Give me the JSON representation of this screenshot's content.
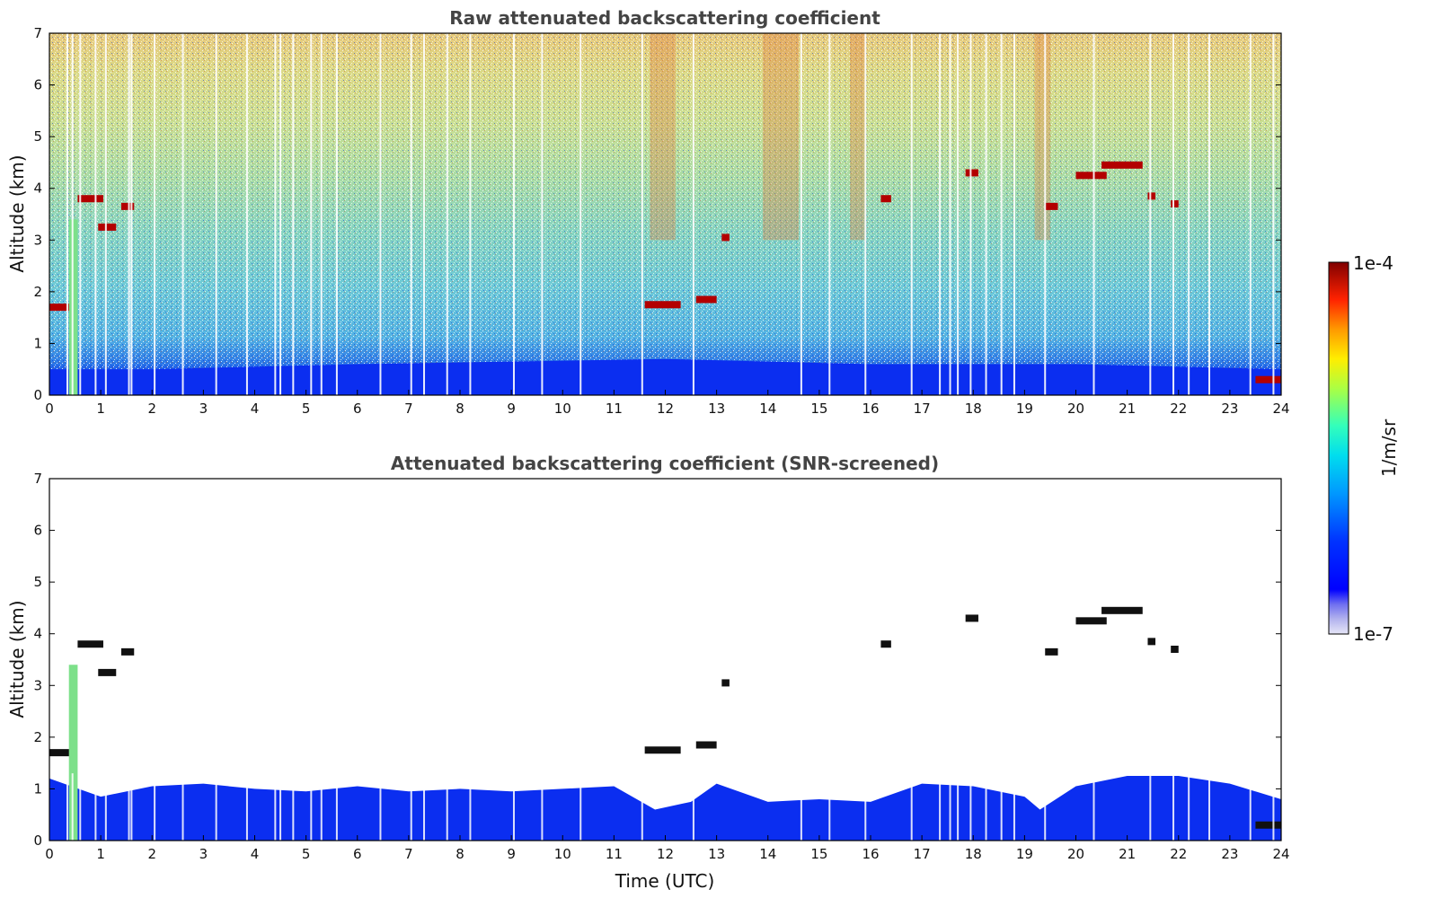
{
  "chart_data": [
    {
      "type": "heatmap",
      "title": "Raw attenuated backscattering coefficient",
      "xlabel": "",
      "ylabel": "Altitude (km)",
      "xlim": [
        0,
        24
      ],
      "ylim": [
        0,
        7
      ],
      "x_ticks": [
        "0",
        "1",
        "2",
        "3",
        "4",
        "5",
        "6",
        "7",
        "8",
        "9",
        "10",
        "11",
        "12",
        "13",
        "14",
        "15",
        "16",
        "17",
        "18",
        "19",
        "20",
        "21",
        "22",
        "23",
        "24"
      ],
      "y_ticks": [
        "0",
        "1",
        "2",
        "3",
        "4",
        "5",
        "6",
        "7"
      ],
      "description_values": {
        "variable": "attenuated backscatter",
        "boundary_layer_top_km": [
          [
            0,
            0.5
          ],
          [
            2,
            0.5
          ],
          [
            6,
            0.6
          ],
          [
            12,
            0.7
          ],
          [
            16,
            0.6
          ],
          [
            20,
            0.6
          ],
          [
            24,
            0.5
          ]
        ],
        "cloud_layers": [
          {
            "t0": 0.0,
            "t1": 0.45,
            "alt_km": 1.7
          },
          {
            "t0": 0.55,
            "t1": 1.05,
            "alt_km": 3.8
          },
          {
            "t0": 0.95,
            "t1": 1.3,
            "alt_km": 3.25
          },
          {
            "t0": 1.4,
            "t1": 1.65,
            "alt_km": 3.65
          },
          {
            "t0": 11.6,
            "t1": 12.3,
            "alt_km": 1.75
          },
          {
            "t0": 12.6,
            "t1": 13.0,
            "alt_km": 1.85
          },
          {
            "t0": 13.1,
            "t1": 13.25,
            "alt_km": 3.05
          },
          {
            "t0": 16.2,
            "t1": 16.4,
            "alt_km": 3.8
          },
          {
            "t0": 17.85,
            "t1": 18.1,
            "alt_km": 4.3
          },
          {
            "t0": 19.4,
            "t1": 19.65,
            "alt_km": 3.65
          },
          {
            "t0": 20.0,
            "t1": 20.6,
            "alt_km": 4.25
          },
          {
            "t0": 20.5,
            "t1": 21.3,
            "alt_km": 4.45
          },
          {
            "t0": 21.4,
            "t1": 21.55,
            "alt_km": 3.85
          },
          {
            "t0": 21.85,
            "t1": 22.0,
            "alt_km": 3.7
          },
          {
            "t0": 23.5,
            "t1": 24.0,
            "alt_km": 0.3
          }
        ],
        "signal_gaps_utc": [
          0.35,
          0.45,
          0.6,
          0.9,
          1.1,
          1.55,
          1.6,
          2.05,
          2.6,
          3.25,
          3.85,
          4.4,
          4.5,
          4.75,
          5.1,
          5.3,
          5.6,
          6.45,
          7.05,
          7.3,
          7.75,
          8.2,
          9.05,
          9.6,
          10.35,
          11.55,
          12.55,
          14.65,
          15.2,
          15.9,
          16.8,
          17.35,
          17.55,
          17.7,
          17.95,
          18.25,
          18.55,
          18.8,
          19.4,
          20.35,
          21.45,
          21.9,
          22.2,
          22.6,
          23.4,
          23.85
        ]
      }
    },
    {
      "type": "heatmap",
      "title": "Attenuated backscattering coefficient (SNR-screened)",
      "xlabel": "Time (UTC)",
      "ylabel": "Altitude (km)",
      "xlim": [
        0,
        24
      ],
      "ylim": [
        0,
        7
      ],
      "x_ticks": [
        "0",
        "1",
        "2",
        "3",
        "4",
        "5",
        "6",
        "7",
        "8",
        "9",
        "10",
        "11",
        "12",
        "13",
        "14",
        "15",
        "16",
        "17",
        "18",
        "19",
        "20",
        "21",
        "22",
        "23",
        "24"
      ],
      "y_ticks": [
        "0",
        "1",
        "2",
        "3",
        "4",
        "5",
        "6",
        "7"
      ],
      "description_values": {
        "screened_top_km": [
          [
            0,
            1.2
          ],
          [
            1,
            0.85
          ],
          [
            2,
            1.05
          ],
          [
            3,
            1.1
          ],
          [
            4,
            1.0
          ],
          [
            5,
            0.95
          ],
          [
            6,
            1.05
          ],
          [
            7,
            0.95
          ],
          [
            8,
            1.0
          ],
          [
            9,
            0.95
          ],
          [
            10,
            1.0
          ],
          [
            11,
            1.05
          ],
          [
            11.8,
            0.6
          ],
          [
            12.5,
            0.75
          ],
          [
            13,
            1.1
          ],
          [
            14,
            0.75
          ],
          [
            15,
            0.8
          ],
          [
            16,
            0.75
          ],
          [
            17,
            1.1
          ],
          [
            18,
            1.05
          ],
          [
            19,
            0.85
          ],
          [
            19.3,
            0.6
          ],
          [
            20,
            1.05
          ],
          [
            21,
            1.25
          ],
          [
            22,
            1.25
          ],
          [
            23,
            1.1
          ],
          [
            24,
            0.8
          ]
        ]
      }
    }
  ],
  "colorbar": {
    "label": "1/m/sr",
    "max_label": "1e-4",
    "min_label": "1e-7",
    "colors": [
      "#e6e6f7",
      "#b3b3ee",
      "#7f7fe8",
      "#1f1ff5",
      "#0000ff",
      "#0044ff",
      "#0088ff",
      "#00ccff",
      "#22ffdd",
      "#77ff88",
      "#ccff33",
      "#ffee00",
      "#ff9900",
      "#ff3300",
      "#cc0000",
      "#800000"
    ]
  }
}
